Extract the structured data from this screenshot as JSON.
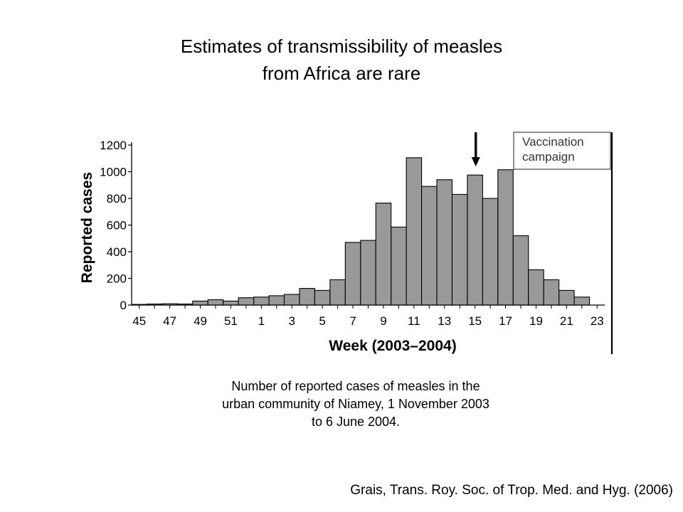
{
  "title": {
    "line1": "Estimates of transmissibility of measles",
    "line2": "from Africa are rare"
  },
  "caption": {
    "line1": "Number of reported cases of measles in the",
    "line2": "urban community of Niamey, 1 November 2003",
    "line3": "to 6 June 2004."
  },
  "citation": "Grais, Trans. Roy. Soc. of Trop. Med. and Hyg. (2006)",
  "chart_data": {
    "type": "bar",
    "title": "",
    "xlabel": "Week (2003–2004)",
    "ylabel": "Reported cases",
    "ylim": [
      0,
      1200
    ],
    "yticks": [
      0,
      200,
      400,
      600,
      800,
      1000,
      1200
    ],
    "xtick_labels": [
      "45",
      "47",
      "49",
      "51",
      "1",
      "3",
      "5",
      "7",
      "9",
      "11",
      "13",
      "15",
      "17",
      "19",
      "21",
      "23"
    ],
    "categories": [
      "45",
      "46",
      "47",
      "48",
      "49",
      "50",
      "51",
      "52",
      "1",
      "2",
      "3",
      "4",
      "5",
      "6",
      "7",
      "8",
      "9",
      "10",
      "11",
      "12",
      "13",
      "14",
      "15",
      "16",
      "17",
      "18",
      "19",
      "20",
      "21",
      "22"
    ],
    "values": [
      5,
      8,
      10,
      8,
      30,
      40,
      30,
      55,
      60,
      70,
      80,
      125,
      110,
      190,
      470,
      485,
      765,
      585,
      1105,
      890,
      940,
      830,
      975,
      800,
      1015,
      520,
      265,
      190,
      110,
      60
    ],
    "bar_color": "#999999",
    "grid": false,
    "annotations": [
      {
        "text": "Vaccination campaign",
        "line1": "Vaccination",
        "line2": "campaign",
        "arrow_week": "15"
      }
    ]
  }
}
